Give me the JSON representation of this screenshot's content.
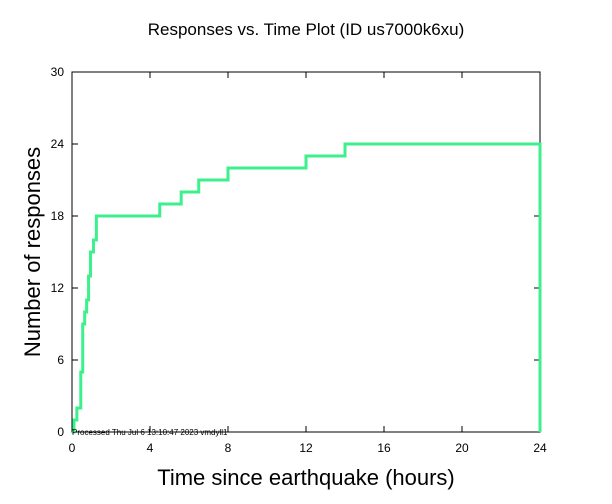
{
  "chart_data": {
    "type": "line",
    "title": "Responses vs. Time Plot (ID us7000k6xu)",
    "xlabel": "Time since earthquake (hours)",
    "ylabel": "Number of responses",
    "xlim": [
      0,
      24
    ],
    "ylim": [
      0,
      30
    ],
    "xticks": [
      0,
      4,
      8,
      12,
      16,
      20,
      24
    ],
    "yticks": [
      0,
      6,
      12,
      18,
      24,
      30
    ],
    "grid": false,
    "step": true,
    "line_color": "#3cf08c",
    "series": [
      {
        "x": [
          0,
          0.1,
          0.25,
          0.45,
          0.55,
          0.65,
          0.75,
          0.85,
          0.95,
          1.1,
          1.25,
          4.5,
          5.6,
          6.5,
          8.0,
          12.0,
          14.0,
          24.0,
          24.0
        ],
        "y": [
          0,
          1,
          2,
          5,
          9,
          10,
          11,
          13,
          15,
          16,
          18,
          19,
          20,
          21,
          22,
          23,
          24,
          24,
          0
        ]
      }
    ],
    "annotation": "Processed Thu Jul  6 13:10:47 2023 vmdyll1"
  }
}
